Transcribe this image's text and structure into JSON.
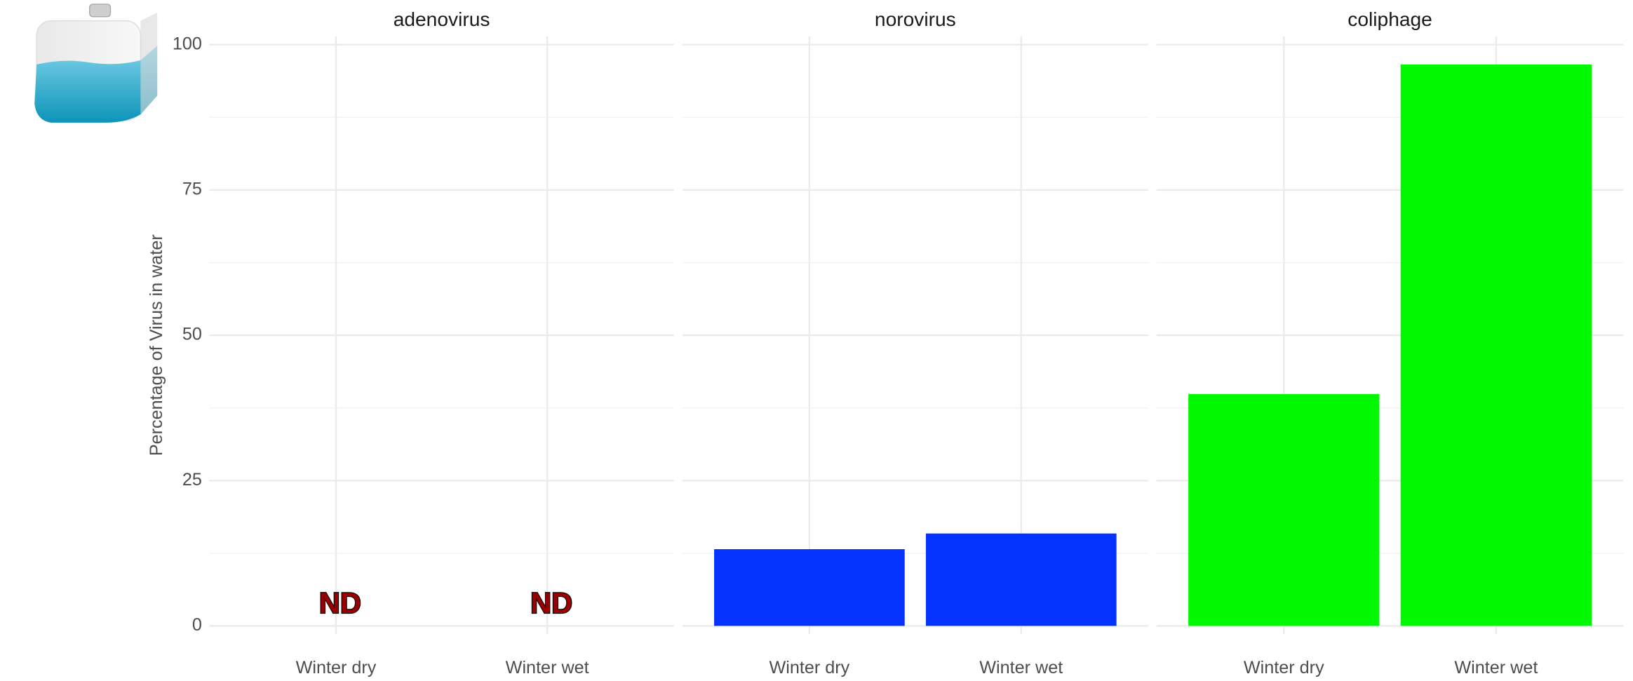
{
  "chart_data": [
    {
      "type": "bar",
      "title": "adenovirus",
      "y_label": "Percentage of Virus in water",
      "categories": [
        "Winter dry",
        "Winter wet"
      ],
      "values": [
        null,
        null
      ],
      "annotations": [
        "ND",
        "ND"
      ],
      "color": "#0433ff",
      "ylim": [
        0,
        100
      ],
      "yticks": [
        0,
        25,
        50,
        75,
        100
      ],
      "minor_yticks": [
        12.5,
        37.5,
        62.5,
        87.5
      ],
      "grid": true
    },
    {
      "type": "bar",
      "title": "norovirus",
      "categories": [
        "Winter dry",
        "Winter wet"
      ],
      "values": [
        13.2,
        15.9
      ],
      "color": "#0433ff",
      "ylim": [
        0,
        100
      ],
      "yticks": [
        0,
        25,
        50,
        75,
        100
      ],
      "minor_yticks": [
        12.5,
        37.5,
        62.5,
        87.5
      ],
      "grid": true
    },
    {
      "type": "bar",
      "title": "coliphage",
      "categories": [
        "Winter dry",
        "Winter wet"
      ],
      "values": [
        39.9,
        96.6
      ],
      "color": "#00f900",
      "ylim": [
        0,
        100
      ],
      "yticks": [
        0,
        25,
        50,
        75,
        100
      ],
      "minor_yticks": [
        12.5,
        37.5,
        62.5,
        87.5
      ],
      "grid": true
    }
  ]
}
